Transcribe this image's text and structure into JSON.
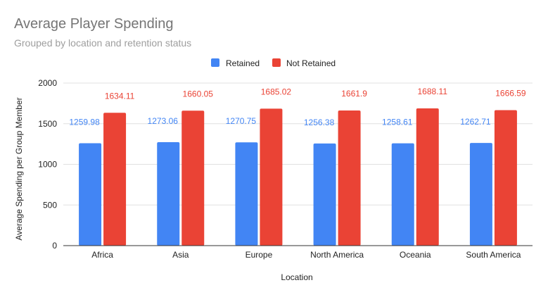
{
  "chart_data": {
    "type": "bar",
    "title": "Average Player Spending",
    "subtitle": "Grouped by location and retention status",
    "xlabel": "Location",
    "ylabel": "Average Spending per Group Member",
    "categories": [
      "Africa",
      "Asia",
      "Europe",
      "North America",
      "Oceania",
      "South America"
    ],
    "series": [
      {
        "name": "Retained",
        "color": "#4285f4",
        "values": [
          1259.98,
          1273.06,
          1270.75,
          1256.38,
          1258.61,
          1262.71
        ],
        "labels": [
          "1259.98",
          "1273.06",
          "1270.75",
          "1256.38",
          "1258.61",
          "1262.71"
        ]
      },
      {
        "name": "Not Retained",
        "color": "#ea4335",
        "values": [
          1634.11,
          1660.05,
          1685.02,
          1661.9,
          1688.11,
          1666.59
        ],
        "labels": [
          "1634.11",
          "1660.05",
          "1685.02",
          "1661.9",
          "1688.11",
          "1666.59"
        ]
      }
    ],
    "ylim": [
      0,
      2000
    ],
    "yticks": [
      "0",
      "500",
      "1000",
      "1500",
      "2000"
    ],
    "legend_position": "top-center",
    "grid": true
  }
}
